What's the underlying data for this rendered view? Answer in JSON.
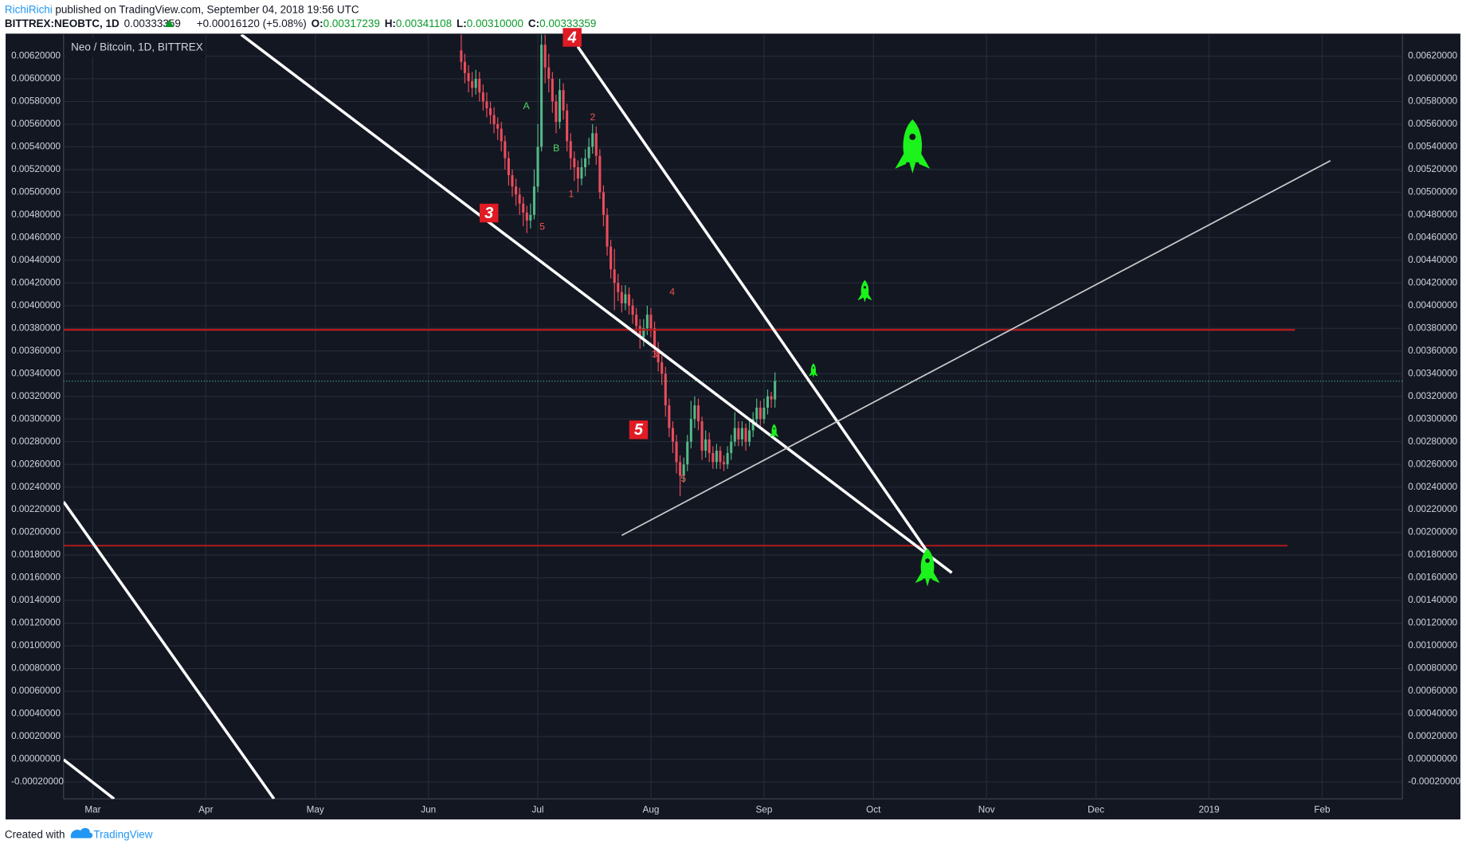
{
  "header": {
    "author": "RichiRichi",
    "published": "published on TradingView.com, September 04, 2018 19:56 UTC",
    "symbol": "BITTREX:NEOBTC, 1D",
    "last": "0.00333359",
    "change": "+0.00016120 (+5.08%)",
    "o_label": "O:",
    "o": "0.00317239",
    "h_label": "H:",
    "h": "0.00341108",
    "l_label": "L:",
    "l": "0.00310000",
    "c_label": "C:",
    "c": "0.00333359"
  },
  "footer": {
    "created": "Created with",
    "brand": "TradingView"
  },
  "chart_data": {
    "type": "candlestick",
    "title": "Neo / Bitcoin, 1D, BITTREX",
    "x": [
      101,
      102,
      103,
      104,
      105,
      106,
      107,
      108,
      109,
      110,
      111,
      112,
      113,
      114,
      115,
      116,
      117,
      118,
      119,
      120,
      121,
      122,
      123,
      124,
      125,
      126,
      127,
      128,
      129,
      130,
      131,
      132,
      133,
      134,
      135,
      136,
      137,
      138,
      139,
      140,
      141,
      142,
      143,
      144,
      145,
      146,
      147,
      148,
      149,
      150,
      151,
      152,
      153,
      154,
      155,
      156,
      157,
      158,
      159,
      160,
      161,
      162,
      163,
      164,
      165,
      166,
      167,
      168,
      169,
      170,
      171,
      172,
      173,
      174,
      175,
      176,
      177,
      178,
      179,
      180,
      181,
      182,
      183,
      184,
      185,
      186,
      187
    ],
    "open": [
      0.00625,
      0.00615,
      0.00605,
      0.00598,
      0.00592,
      0.006,
      0.00588,
      0.0058,
      0.00574,
      0.00568,
      0.0056,
      0.00556,
      0.00545,
      0.0053,
      0.00515,
      0.00505,
      0.00498,
      0.0049,
      0.00482,
      0.00475,
      0.0048,
      0.00505,
      0.0054,
      0.0063,
      0.0061,
      0.006,
      0.0058,
      0.00562,
      0.0059,
      0.00572,
      0.00545,
      0.0053,
      0.00522,
      0.00512,
      0.00522,
      0.0053,
      0.0054,
      0.00552,
      0.00532,
      0.005,
      0.0048,
      0.00452,
      0.00432,
      0.0042,
      0.00412,
      0.00402,
      0.0041,
      0.004,
      0.00392,
      0.00382,
      0.00372,
      0.0038,
      0.00392,
      0.0038,
      0.00362,
      0.0035,
      0.0034,
      0.00312,
      0.00292,
      0.0028,
      0.00262,
      0.0025,
      0.0026,
      0.0028,
      0.003,
      0.00312,
      0.00298,
      0.00272,
      0.00282,
      0.0027,
      0.00262,
      0.00272,
      0.00262,
      0.0026,
      0.0027,
      0.0028,
      0.00292,
      0.00282,
      0.00292,
      0.0028,
      0.0029,
      0.003,
      0.0031,
      0.003,
      0.0031,
      0.0032,
      0.00317239
    ],
    "high": [
      0.0064,
      0.00622,
      0.00612,
      0.00606,
      0.00608,
      0.00606,
      0.00595,
      0.00588,
      0.0058,
      0.00575,
      0.00566,
      0.00562,
      0.0055,
      0.00536,
      0.0052,
      0.00512,
      0.00504,
      0.00496,
      0.00488,
      0.0049,
      0.0052,
      0.0056,
      0.0066,
      0.0065,
      0.00622,
      0.00606,
      0.00586,
      0.006,
      0.00596,
      0.00578,
      0.00552,
      0.00536,
      0.00528,
      0.0053,
      0.00538,
      0.00548,
      0.0056,
      0.00558,
      0.00538,
      0.00506,
      0.00486,
      0.00458,
      0.0045,
      0.00428,
      0.00418,
      0.00418,
      0.00416,
      0.00406,
      0.00398,
      0.00388,
      0.00388,
      0.004,
      0.00398,
      0.00386,
      0.00368,
      0.00356,
      0.00346,
      0.00318,
      0.00298,
      0.00286,
      0.00268,
      0.00266,
      0.00286,
      0.00316,
      0.0032,
      0.00318,
      0.00302,
      0.0029,
      0.00288,
      0.00276,
      0.00278,
      0.00276,
      0.00268,
      0.00276,
      0.00286,
      0.00306,
      0.00298,
      0.00298,
      0.00296,
      0.00298,
      0.00306,
      0.00318,
      0.00316,
      0.00318,
      0.00326,
      0.00324,
      0.00341108
    ],
    "low": [
      0.00608,
      0.00596,
      0.00588,
      0.00584,
      0.00586,
      0.0058,
      0.00572,
      0.00566,
      0.0056,
      0.00552,
      0.00546,
      0.00536,
      0.0052,
      0.00506,
      0.00496,
      0.00488,
      0.0048,
      0.0047,
      0.00464,
      0.00468,
      0.00476,
      0.005,
      0.00536,
      0.00596,
      0.00588,
      0.0057,
      0.00552,
      0.00556,
      0.00564,
      0.00536,
      0.0052,
      0.0051,
      0.005,
      0.00506,
      0.00514,
      0.00524,
      0.00534,
      0.00524,
      0.00494,
      0.0047,
      0.00444,
      0.00424,
      0.00396,
      0.00404,
      0.00394,
      0.00396,
      0.00392,
      0.00384,
      0.00374,
      0.00362,
      0.00364,
      0.00374,
      0.00372,
      0.00354,
      0.00342,
      0.0033,
      0.00302,
      0.00284,
      0.0027,
      0.00252,
      0.00232,
      0.00244,
      0.00254,
      0.00274,
      0.00292,
      0.0029,
      0.00264,
      0.00266,
      0.00262,
      0.00256,
      0.00256,
      0.00256,
      0.00254,
      0.00256,
      0.00264,
      0.00276,
      0.00276,
      0.00276,
      0.00272,
      0.00276,
      0.00284,
      0.00294,
      0.00294,
      0.00296,
      0.00304,
      0.0031,
      0.0031
    ],
    "close": [
      0.00615,
      0.00605,
      0.00598,
      0.00592,
      0.006,
      0.00588,
      0.0058,
      0.00574,
      0.00568,
      0.0056,
      0.00556,
      0.00545,
      0.0053,
      0.00515,
      0.00505,
      0.00498,
      0.0049,
      0.00482,
      0.00475,
      0.0048,
      0.00505,
      0.0054,
      0.0063,
      0.0061,
      0.006,
      0.0058,
      0.00562,
      0.0059,
      0.00572,
      0.00545,
      0.0053,
      0.00522,
      0.00512,
      0.00522,
      0.0053,
      0.0054,
      0.00552,
      0.00532,
      0.005,
      0.0048,
      0.00452,
      0.00432,
      0.0042,
      0.00412,
      0.00402,
      0.0041,
      0.004,
      0.00392,
      0.00382,
      0.00372,
      0.0038,
      0.00392,
      0.0038,
      0.00362,
      0.0035,
      0.0034,
      0.00312,
      0.00292,
      0.0028,
      0.00262,
      0.0025,
      0.0026,
      0.0028,
      0.003,
      0.00312,
      0.00298,
      0.00272,
      0.00282,
      0.0027,
      0.00262,
      0.00272,
      0.00262,
      0.0026,
      0.0027,
      0.0028,
      0.00292,
      0.00282,
      0.00292,
      0.0028,
      0.0029,
      0.003,
      0.0031,
      0.003,
      0.0031,
      0.0032,
      0.00317239,
      0.00333359
    ],
    "up_color": "#53b987",
    "down_color": "#eb4d5c",
    "xlim": [
      -8,
      359
    ],
    "xticks": [
      {
        "value": 0,
        "label": "Mar"
      },
      {
        "value": 31,
        "label": "Apr"
      },
      {
        "value": 61,
        "label": "May"
      },
      {
        "value": 92,
        "label": "Jun"
      },
      {
        "value": 122,
        "label": "Jul"
      },
      {
        "value": 153,
        "label": "Aug"
      },
      {
        "value": 184,
        "label": "Sep"
      },
      {
        "value": 214,
        "label": "Oct"
      },
      {
        "value": 245,
        "label": "Nov"
      },
      {
        "value": 275,
        "label": "Dec"
      },
      {
        "value": 306,
        "label": "2019"
      },
      {
        "value": 337,
        "label": "Feb"
      }
    ],
    "ylim": [
      -0.00035,
      0.00639
    ],
    "yticks": [
      {
        "value": -0.0002,
        "label": "-0.00020000"
      },
      {
        "value": 0,
        "label": "0.00000000"
      },
      {
        "value": 0.0002,
        "label": "0.00020000"
      },
      {
        "value": 0.0004,
        "label": "0.00040000"
      },
      {
        "value": 0.0006,
        "label": "0.00060000"
      },
      {
        "value": 0.0008,
        "label": "0.00080000"
      },
      {
        "value": 0.001,
        "label": "0.00100000"
      },
      {
        "value": 0.0012,
        "label": "0.00120000"
      },
      {
        "value": 0.0014,
        "label": "0.00140000"
      },
      {
        "value": 0.0016,
        "label": "0.00160000"
      },
      {
        "value": 0.0018,
        "label": "0.00180000"
      },
      {
        "value": 0.002,
        "label": "0.00200000"
      },
      {
        "value": 0.0022,
        "label": "0.00220000"
      },
      {
        "value": 0.0024,
        "label": "0.00240000"
      },
      {
        "value": 0.0026,
        "label": "0.00260000"
      },
      {
        "value": 0.0028,
        "label": "0.00280000"
      },
      {
        "value": 0.003,
        "label": "0.00300000"
      },
      {
        "value": 0.0032,
        "label": "0.00320000"
      },
      {
        "value": 0.0034,
        "label": "0.00340000"
      },
      {
        "value": 0.0036,
        "label": "0.00360000"
      },
      {
        "value": 0.0038,
        "label": "0.00380000"
      },
      {
        "value": 0.004,
        "label": "0.00400000"
      },
      {
        "value": 0.0042,
        "label": "0.00420000"
      },
      {
        "value": 0.0044,
        "label": "0.00440000"
      },
      {
        "value": 0.0046,
        "label": "0.00460000"
      },
      {
        "value": 0.0048,
        "label": "0.00480000"
      },
      {
        "value": 0.005,
        "label": "0.00500000"
      },
      {
        "value": 0.0052,
        "label": "0.00520000"
      },
      {
        "value": 0.0054,
        "label": "0.00540000"
      },
      {
        "value": 0.0056,
        "label": "0.00560000"
      },
      {
        "value": 0.0058,
        "label": "0.00580000"
      },
      {
        "value": 0.006,
        "label": "0.00600000"
      },
      {
        "value": 0.0062,
        "label": "0.00620000"
      }
    ],
    "grid": true,
    "wave_labels": [
      "A",
      "B",
      "2",
      "1",
      "5",
      "4",
      "3",
      "5"
    ],
    "wave_markers": [
      "3",
      "4",
      "5"
    ]
  }
}
